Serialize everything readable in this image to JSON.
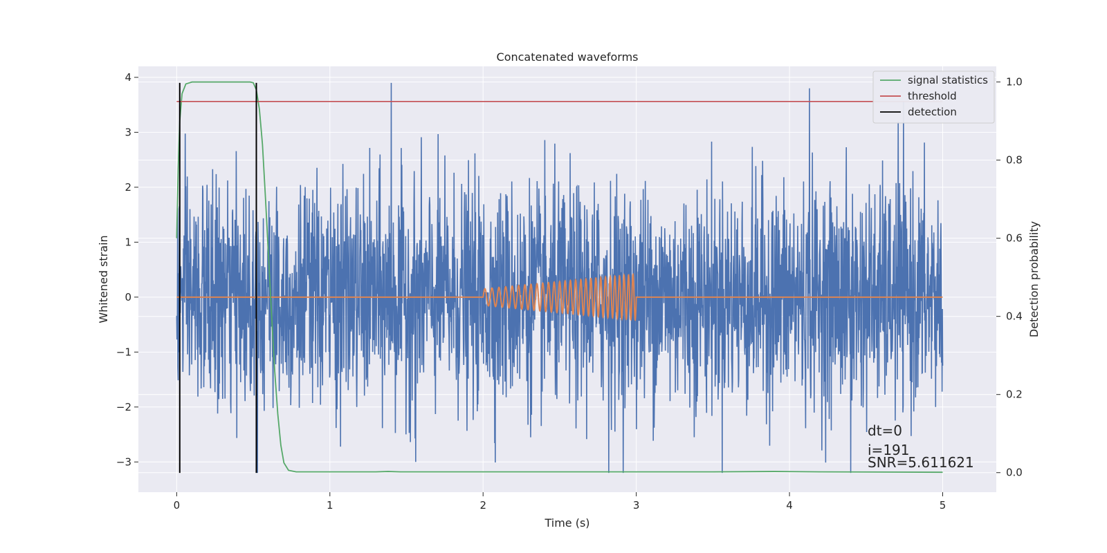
{
  "chart_data": {
    "type": "line",
    "title": "Concatenated waveforms",
    "xlabel": "Time (s)",
    "ylabel": "Whitened strain",
    "y2label": "Detection probability",
    "xlim": [
      -0.25,
      5.35
    ],
    "ylim": [
      -3.55,
      4.2
    ],
    "y2lim": [
      -0.05,
      1.04
    ],
    "x_ticks": [
      0,
      1,
      2,
      3,
      4,
      5
    ],
    "x_tick_labels": [
      "0",
      "1",
      "2",
      "3",
      "4",
      "5"
    ],
    "y_ticks": [
      -3,
      -2,
      -1,
      0,
      1,
      2,
      3,
      4
    ],
    "y_tick_labels": [
      "−3",
      "−2",
      "−1",
      "0",
      "1",
      "2",
      "3",
      "4"
    ],
    "y2_ticks": [
      0.0,
      0.2,
      0.4,
      0.6,
      0.8,
      1.0
    ],
    "y2_tick_labels": [
      "0.0",
      "0.2",
      "0.4",
      "0.6",
      "0.8",
      "1.0"
    ],
    "grid": true,
    "legend_placement": "top-right",
    "colors": {
      "noise": "#4c72b0",
      "injection": "#dd8452",
      "signal_statistics": "#55a868",
      "threshold": "#c44e52",
      "detection": "#000000",
      "background": "#eaeaf2",
      "grid": "#ffffff"
    },
    "noise": {
      "t_start": 0.0,
      "t_end": 5.0,
      "amplitude_range": [
        -3.2,
        3.9
      ],
      "spikes": [
        {
          "t": 1.4,
          "value": 3.9
        },
        {
          "t": 4.13,
          "value": 3.8
        },
        {
          "t": 4.71,
          "value": 3.2
        },
        {
          "t": 2.82,
          "value": -3.2
        },
        {
          "t": 4.4,
          "value": -3.2
        },
        {
          "t": 1.56,
          "value": -3.0
        }
      ]
    },
    "injection": {
      "t_start": 2.0,
      "t_end": 3.0,
      "amplitude_start": 0.15,
      "amplitude_end": 0.42,
      "cycles": 28
    },
    "signal_statistics": [
      {
        "x": 0.0,
        "y": 0.6
      },
      {
        "x": 0.01,
        "y": 0.78
      },
      {
        "x": 0.02,
        "y": 0.9
      },
      {
        "x": 0.035,
        "y": 0.97
      },
      {
        "x": 0.06,
        "y": 0.995
      },
      {
        "x": 0.1,
        "y": 1.0
      },
      {
        "x": 0.48,
        "y": 1.0
      },
      {
        "x": 0.5,
        "y": 0.998
      },
      {
        "x": 0.52,
        "y": 0.98
      },
      {
        "x": 0.54,
        "y": 0.93
      },
      {
        "x": 0.56,
        "y": 0.84
      },
      {
        "x": 0.58,
        "y": 0.7
      },
      {
        "x": 0.6,
        "y": 0.55
      },
      {
        "x": 0.62,
        "y": 0.4
      },
      {
        "x": 0.64,
        "y": 0.26
      },
      {
        "x": 0.66,
        "y": 0.15
      },
      {
        "x": 0.68,
        "y": 0.07
      },
      {
        "x": 0.7,
        "y": 0.025
      },
      {
        "x": 0.73,
        "y": 0.006
      },
      {
        "x": 0.78,
        "y": 0.002
      },
      {
        "x": 1.3,
        "y": 0.002
      },
      {
        "x": 1.38,
        "y": 0.003
      },
      {
        "x": 1.46,
        "y": 0.002
      },
      {
        "x": 3.5,
        "y": 0.002
      },
      {
        "x": 3.9,
        "y": 0.003
      },
      {
        "x": 4.2,
        "y": 0.002
      },
      {
        "x": 5.0,
        "y": 0.001
      }
    ],
    "threshold": {
      "x_start": 0.0,
      "x_end": 5.0,
      "value": 0.95
    },
    "detections": [
      0.02,
      0.52
    ],
    "detection_y_range": [
      -3.2,
      3.9
    ],
    "legend": [
      "signal statistics",
      "threshold",
      "detection"
    ],
    "annotations": [
      "dt=0",
      "i=191",
      "SNR=5.611621"
    ]
  }
}
